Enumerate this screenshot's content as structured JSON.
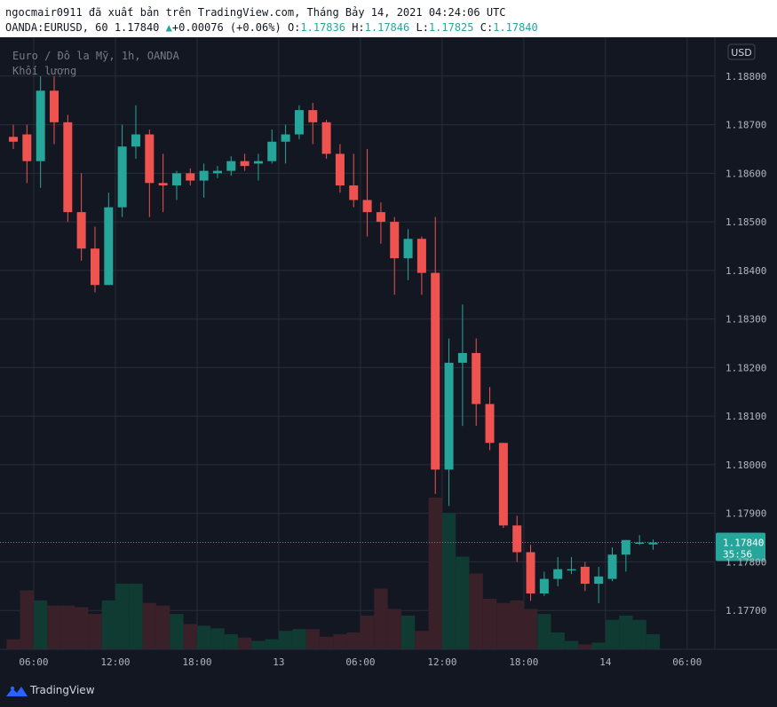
{
  "header": {
    "export_line": "ngocmair0911 đã xuất bản trên TradingView.com, Tháng Bảy 14, 2021 04:24:06 UTC",
    "symbol_line": "OANDA:EURUSD, 60",
    "last_price": "1.17840",
    "change_arrow": "▲",
    "change": "+0.00076 (+0.06%)",
    "o_label": "O:",
    "o_value": "1.17836",
    "h_label": "H:",
    "h_value": "1.17846",
    "l_label": "L:",
    "l_value": "1.17825",
    "c_label": "C:",
    "c_value": "1.17840"
  },
  "legend": {
    "title": "Euro / Đô la Mỹ, 1h, OANDA",
    "volume_label": "Khối lượng"
  },
  "currency_badge": "USD",
  "price_tag": {
    "price": "1.17840",
    "countdown": "35:56"
  },
  "branding": {
    "name": "TradingView"
  },
  "colors": {
    "background": "#131722",
    "up": "#26a69a",
    "down": "#ef5350",
    "grid": "#2a2e39",
    "text": "#b2b5be",
    "volume_up": "#0f3b33",
    "volume_down": "#3a2029"
  },
  "chart_data": {
    "type": "candlestick",
    "title": "Euro / Đô la Mỹ, 1h, OANDA",
    "y_axis_side": "right",
    "ylim": [
      1.1762,
      1.1888
    ],
    "y_ticks": [
      "1.17700",
      "1.17800",
      "1.17900",
      "1.18000",
      "1.18100",
      "1.18200",
      "1.18300",
      "1.18400",
      "1.18500",
      "1.18600",
      "1.18700",
      "1.18800"
    ],
    "x_ticks": [
      {
        "label": "06:00",
        "i": 1.5
      },
      {
        "label": "12:00",
        "i": 7.5
      },
      {
        "label": "18:00",
        "i": 13.5
      },
      {
        "label": "13",
        "i": 19.5
      },
      {
        "label": "06:00",
        "i": 25.5
      },
      {
        "label": "12:00",
        "i": 31.5
      },
      {
        "label": "18:00",
        "i": 37.5
      },
      {
        "label": "14",
        "i": 43.5
      },
      {
        "label": "06:00",
        "i": 49.5
      }
    ],
    "last_price_line": 1.1784,
    "candles": [
      {
        "o": 1.18675,
        "h": 1.187,
        "l": 1.1865,
        "c": 1.18665
      },
      {
        "o": 1.1868,
        "h": 1.187,
        "l": 1.1858,
        "c": 1.18625
      },
      {
        "o": 1.18625,
        "h": 1.188,
        "l": 1.1857,
        "c": 1.1877
      },
      {
        "o": 1.1877,
        "h": 1.188,
        "l": 1.1866,
        "c": 1.18705
      },
      {
        "o": 1.18705,
        "h": 1.1872,
        "l": 1.185,
        "c": 1.1852
      },
      {
        "o": 1.1852,
        "h": 1.186,
        "l": 1.1842,
        "c": 1.18445
      },
      {
        "o": 1.18445,
        "h": 1.1849,
        "l": 1.18355,
        "c": 1.1837
      },
      {
        "o": 1.1837,
        "h": 1.1856,
        "l": 1.1837,
        "c": 1.1853
      },
      {
        "o": 1.1853,
        "h": 1.187,
        "l": 1.1851,
        "c": 1.18655
      },
      {
        "o": 1.18655,
        "h": 1.1874,
        "l": 1.1863,
        "c": 1.1868
      },
      {
        "o": 1.1868,
        "h": 1.1869,
        "l": 1.1851,
        "c": 1.1858
      },
      {
        "o": 1.1858,
        "h": 1.1864,
        "l": 1.1852,
        "c": 1.18575
      },
      {
        "o": 1.18575,
        "h": 1.18605,
        "l": 1.18545,
        "c": 1.186
      },
      {
        "o": 1.186,
        "h": 1.1861,
        "l": 1.18575,
        "c": 1.18585
      },
      {
        "o": 1.18585,
        "h": 1.1862,
        "l": 1.1855,
        "c": 1.18605
      },
      {
        "o": 1.186,
        "h": 1.18615,
        "l": 1.1859,
        "c": 1.18605
      },
      {
        "o": 1.18605,
        "h": 1.18635,
        "l": 1.18595,
        "c": 1.18625
      },
      {
        "o": 1.18625,
        "h": 1.1864,
        "l": 1.18605,
        "c": 1.18615
      },
      {
        "o": 1.1862,
        "h": 1.1864,
        "l": 1.18585,
        "c": 1.18625
      },
      {
        "o": 1.18625,
        "h": 1.1869,
        "l": 1.1862,
        "c": 1.18665
      },
      {
        "o": 1.18665,
        "h": 1.187,
        "l": 1.1862,
        "c": 1.1868
      },
      {
        "o": 1.1868,
        "h": 1.1874,
        "l": 1.1867,
        "c": 1.1873
      },
      {
        "o": 1.1873,
        "h": 1.18745,
        "l": 1.1866,
        "c": 1.18705
      },
      {
        "o": 1.18705,
        "h": 1.1871,
        "l": 1.1863,
        "c": 1.1864
      },
      {
        "o": 1.1864,
        "h": 1.1866,
        "l": 1.1856,
        "c": 1.18575
      },
      {
        "o": 1.18575,
        "h": 1.1864,
        "l": 1.1853,
        "c": 1.18545
      },
      {
        "o": 1.18545,
        "h": 1.1865,
        "l": 1.1847,
        "c": 1.1852
      },
      {
        "o": 1.1852,
        "h": 1.1854,
        "l": 1.18455,
        "c": 1.185
      },
      {
        "o": 1.185,
        "h": 1.1851,
        "l": 1.1835,
        "c": 1.18425
      },
      {
        "o": 1.18425,
        "h": 1.18485,
        "l": 1.1838,
        "c": 1.18465
      },
      {
        "o": 1.18465,
        "h": 1.1847,
        "l": 1.1835,
        "c": 1.18395
      },
      {
        "o": 1.18395,
        "h": 1.1851,
        "l": 1.1794,
        "c": 1.1799
      },
      {
        "o": 1.1799,
        "h": 1.1826,
        "l": 1.17915,
        "c": 1.1821
      },
      {
        "o": 1.1821,
        "h": 1.1833,
        "l": 1.1808,
        "c": 1.1823
      },
      {
        "o": 1.1823,
        "h": 1.1826,
        "l": 1.1808,
        "c": 1.18125
      },
      {
        "o": 1.18125,
        "h": 1.1816,
        "l": 1.1803,
        "c": 1.18045
      },
      {
        "o": 1.18045,
        "h": 1.1804,
        "l": 1.1787,
        "c": 1.17875
      },
      {
        "o": 1.17875,
        "h": 1.17895,
        "l": 1.178,
        "c": 1.1782
      },
      {
        "o": 1.1782,
        "h": 1.17835,
        "l": 1.1772,
        "c": 1.17735
      },
      {
        "o": 1.17735,
        "h": 1.1778,
        "l": 1.1773,
        "c": 1.17765
      },
      {
        "o": 1.17765,
        "h": 1.1781,
        "l": 1.1775,
        "c": 1.17785
      },
      {
        "o": 1.17785,
        "h": 1.1781,
        "l": 1.17775,
        "c": 1.17785
      },
      {
        "o": 1.1779,
        "h": 1.178,
        "l": 1.1774,
        "c": 1.17755
      },
      {
        "o": 1.17755,
        "h": 1.1779,
        "l": 1.17715,
        "c": 1.1777
      },
      {
        "o": 1.17765,
        "h": 1.1783,
        "l": 1.1776,
        "c": 1.17815
      },
      {
        "o": 1.17815,
        "h": 1.17845,
        "l": 1.1778,
        "c": 1.17845
      },
      {
        "o": 1.1784,
        "h": 1.17855,
        "l": 1.17835,
        "c": 1.1784
      },
      {
        "o": 1.17836,
        "h": 1.17846,
        "l": 1.17825,
        "c": 1.1784
      }
    ],
    "volume_series_name": "Khối lượng",
    "volume": [
      12,
      70,
      58,
      52,
      52,
      50,
      42,
      58,
      78,
      78,
      55,
      52,
      42,
      30,
      28,
      25,
      18,
      14,
      10,
      12,
      22,
      24,
      24,
      15,
      18,
      20,
      40,
      72,
      48,
      40,
      22,
      180,
      162,
      110,
      90,
      60,
      55,
      58,
      48,
      42,
      20,
      10,
      6,
      8,
      35,
      40,
      35,
      18
    ]
  }
}
